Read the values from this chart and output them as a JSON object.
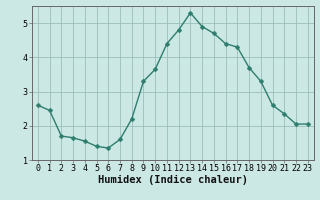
{
  "x": [
    0,
    1,
    2,
    3,
    4,
    5,
    6,
    7,
    8,
    9,
    10,
    11,
    12,
    13,
    14,
    15,
    16,
    17,
    18,
    19,
    20,
    21,
    22,
    23
  ],
  "y": [
    2.6,
    2.45,
    1.7,
    1.65,
    1.55,
    1.4,
    1.35,
    1.6,
    2.2,
    3.3,
    3.65,
    4.4,
    4.8,
    5.3,
    4.9,
    4.7,
    4.4,
    4.3,
    3.7,
    3.3,
    2.6,
    2.35,
    2.05,
    2.05
  ],
  "line_color": "#2e7d6e",
  "marker": "D",
  "marker_size": 2.5,
  "bg_color": "#cce8e4",
  "grid_color_major": "#9bbfbb",
  "grid_color_minor": "#b8d8d4",
  "xlabel": "Humidex (Indice chaleur)",
  "xlabel_fontsize": 7.5,
  "tick_fontsize": 6,
  "ylim": [
    1.0,
    5.5
  ],
  "yticks": [
    1,
    2,
    3,
    4,
    5
  ],
  "xlim": [
    -0.5,
    23.5
  ],
  "xticks": [
    0,
    1,
    2,
    3,
    4,
    5,
    6,
    7,
    8,
    9,
    10,
    11,
    12,
    13,
    14,
    15,
    16,
    17,
    18,
    19,
    20,
    21,
    22,
    23
  ],
  "spine_color": "#666666",
  "linewidth": 1.0
}
